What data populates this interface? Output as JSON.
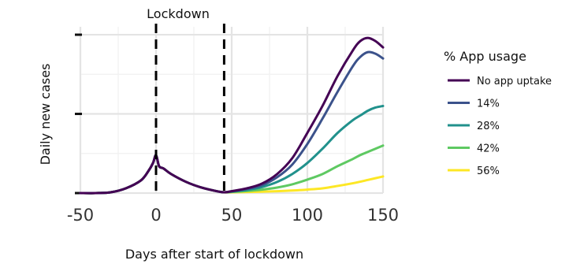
{
  "chart_data": {
    "type": "line",
    "title": "",
    "xlabel": "Days after start of lockdown",
    "ylabel": "Daily new cases",
    "xlim": [
      -50,
      150
    ],
    "ylim": [
      0,
      1.05
    ],
    "x_ticks": [
      -50,
      0,
      50,
      100,
      150
    ],
    "x_tick_labels": [
      "-50",
      "0",
      "50",
      "100",
      "150"
    ],
    "y_ticks": [
      0,
      0.5,
      1
    ],
    "grid": true,
    "legend": {
      "title": "% App usage",
      "placement": "right"
    },
    "annotations": [
      {
        "label": "Lockdown",
        "x": 0,
        "style": "dashed-vertical"
      },
      {
        "label": "",
        "x": 45,
        "style": "dashed-vertical"
      }
    ],
    "x": [
      -50,
      -40,
      -30,
      -20,
      -10,
      -5,
      -2,
      0,
      2,
      5,
      10,
      20,
      30,
      40,
      45,
      50,
      60,
      70,
      80,
      90,
      100,
      110,
      120,
      130,
      135,
      140,
      145,
      150
    ],
    "series": [
      {
        "name": "No app uptake",
        "color": "#440154",
        "values": [
          0.0,
          0.0,
          0.005,
          0.03,
          0.08,
          0.14,
          0.19,
          0.24,
          0.17,
          0.155,
          0.12,
          0.07,
          0.035,
          0.012,
          0.005,
          0.012,
          0.03,
          0.06,
          0.12,
          0.22,
          0.38,
          0.55,
          0.74,
          0.9,
          0.96,
          0.98,
          0.96,
          0.92
        ]
      },
      {
        "name": "14%",
        "color": "#3b528b",
        "values": [
          0.0,
          0.0,
          0.005,
          0.03,
          0.08,
          0.14,
          0.19,
          0.24,
          0.17,
          0.155,
          0.12,
          0.07,
          0.035,
          0.012,
          0.005,
          0.011,
          0.026,
          0.05,
          0.1,
          0.18,
          0.31,
          0.47,
          0.64,
          0.8,
          0.86,
          0.89,
          0.88,
          0.85
        ]
      },
      {
        "name": "28%",
        "color": "#21918c",
        "values": [
          0.0,
          0.0,
          0.005,
          0.03,
          0.08,
          0.14,
          0.19,
          0.24,
          0.17,
          0.155,
          0.12,
          0.07,
          0.035,
          0.012,
          0.005,
          0.009,
          0.02,
          0.038,
          0.07,
          0.12,
          0.19,
          0.28,
          0.38,
          0.46,
          0.49,
          0.52,
          0.54,
          0.55
        ]
      },
      {
        "name": "42%",
        "color": "#5ec962",
        "values": [
          0.0,
          0.0,
          0.005,
          0.03,
          0.08,
          0.14,
          0.19,
          0.24,
          0.17,
          0.155,
          0.12,
          0.07,
          0.035,
          0.012,
          0.005,
          0.007,
          0.013,
          0.022,
          0.035,
          0.055,
          0.085,
          0.12,
          0.17,
          0.215,
          0.24,
          0.26,
          0.28,
          0.3
        ]
      },
      {
        "name": "56%",
        "color": "#fde725",
        "values": [
          0.0,
          0.0,
          0.005,
          0.03,
          0.08,
          0.14,
          0.19,
          0.24,
          0.17,
          0.155,
          0.12,
          0.07,
          0.035,
          0.012,
          0.005,
          0.005,
          0.007,
          0.009,
          0.012,
          0.016,
          0.022,
          0.03,
          0.045,
          0.062,
          0.072,
          0.083,
          0.094,
          0.105
        ]
      }
    ]
  }
}
